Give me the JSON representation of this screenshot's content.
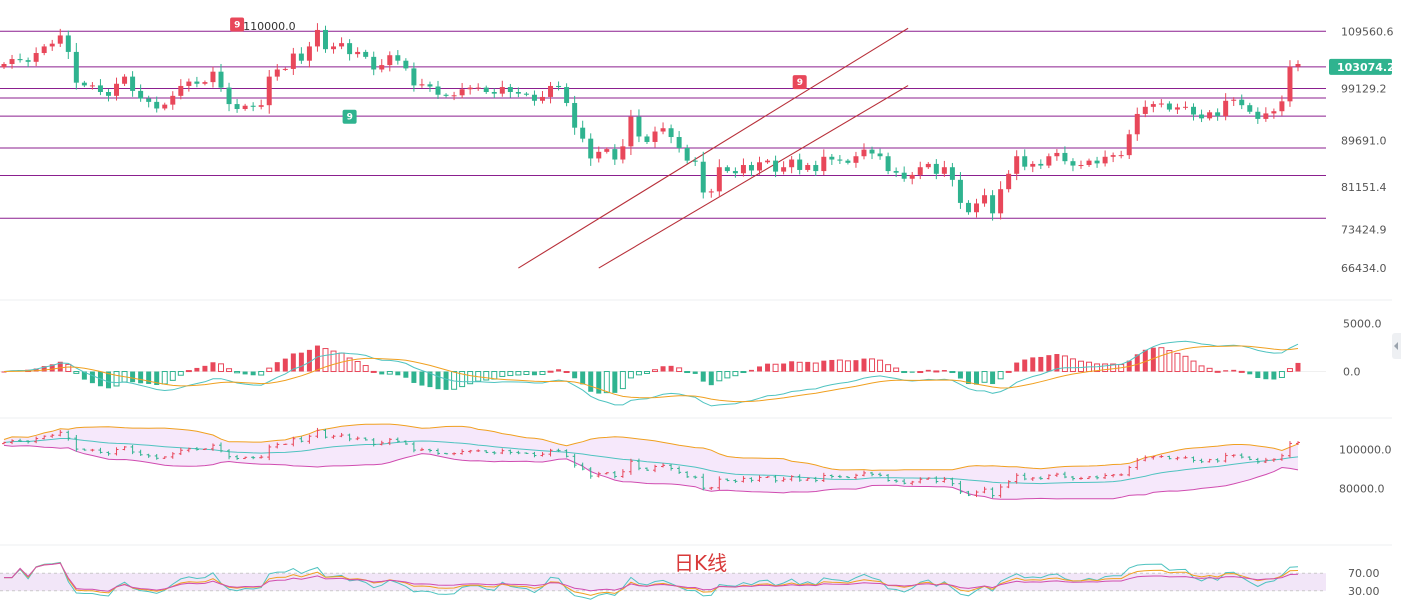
{
  "chart_data": {
    "type": "candlestick",
    "footer_label": "日K线",
    "colors": {
      "up": "#e8475a",
      "down": "#2fb38f",
      "level_line": "#8b1f8f",
      "channel_line": "#b8303a",
      "macd_dif": "#4fc3c0",
      "macd_dea": "#f0a020",
      "boll_upper": "#f0a020",
      "boll_mid": "#4fc3c0",
      "boll_lower": "#d04cb0",
      "boll_fill": "#f4e2fa",
      "rsi_band": "#f2e6f8",
      "price_tag": "#2fb38f",
      "marker_sell": "#e8475a",
      "marker_buy": "#2fb38f"
    },
    "price_panel": {
      "y_ticks": [
        "109560.6",
        "99129.2",
        "89691.0",
        "81151.4",
        "73424.9",
        "66434.0"
      ],
      "y_range": [
        62800,
        113800
      ],
      "current_price": "103074.2",
      "high_annotation": "110000.0",
      "horizontal_levels": [
        109560.6,
        103074.2,
        99129.2,
        97400,
        94100,
        88300,
        83300,
        75500
      ],
      "channel_upper": [
        [
          64,
          66434
        ],
        [
          110,
          109560.6
        ]
      ],
      "channel_lower": [
        [
          74,
          66434
        ],
        [
          110,
          99129.2
        ]
      ],
      "markers": [
        {
          "x": 29,
          "price": 110800,
          "label": "9",
          "kind": "sell"
        },
        {
          "x": 43,
          "price": 94000,
          "label": "9",
          "kind": "buy"
        },
        {
          "x": 99,
          "price": 100300,
          "label": "9",
          "kind": "sell"
        }
      ]
    },
    "macd_panel": {
      "y_ticks": [
        "5000.0",
        "0.0"
      ],
      "y_range": [
        -3800,
        6200
      ]
    },
    "boll_panel": {
      "y_ticks": [
        "100000.0",
        "80000.0"
      ],
      "y_range": [
        68000,
        111000
      ]
    },
    "rsi_panel": {
      "y_ticks": [
        "70.00",
        "30.00"
      ],
      "y_range": [
        0,
        100
      ]
    },
    "closes": [
      103600,
      104500,
      104300,
      104000,
      105600,
      106800,
      107300,
      108800,
      105800,
      100200,
      99700,
      99700,
      98500,
      97800,
      100000,
      101300,
      98700,
      97300,
      96700,
      95500,
      96200,
      97800,
      99600,
      100400,
      100000,
      100300,
      102200,
      99300,
      96300,
      95400,
      96000,
      95800,
      96100,
      101300,
      102600,
      102700,
      105500,
      104200,
      106800,
      109800,
      106300,
      106800,
      107400,
      105400,
      105800,
      104900,
      102600,
      103400,
      105200,
      104200,
      102800,
      99700,
      99900,
      99500,
      98000,
      97800,
      97900,
      99000,
      99300,
      99300,
      98500,
      98200,
      99400,
      98500,
      98200,
      98000,
      96900,
      97600,
      99600,
      99400,
      96500,
      92000,
      90000,
      86400,
      87600,
      88100,
      86200,
      88600,
      94000,
      90400,
      89400,
      91300,
      91900,
      90300,
      88300,
      86000,
      85800,
      80200,
      80400,
      84800,
      84100,
      83700,
      85200,
      84200,
      85700,
      86000,
      84000,
      84800,
      86200,
      84300,
      85200,
      84100,
      86700,
      86200,
      86000,
      85600,
      86800,
      88000,
      87300,
      86800,
      84100,
      83800,
      82700,
      83400,
      84800,
      85400,
      83600,
      84800,
      82500,
      78300,
      76600,
      78200,
      79700,
      76400,
      80800,
      83600,
      86800,
      84900,
      85400,
      85100,
      86800,
      87400,
      85900,
      85100,
      85200,
      86000,
      85500,
      86700,
      87000,
      87000,
      90800,
      94500,
      95800,
      96300,
      96400,
      95300,
      95700,
      95800,
      94400,
      93700,
      94800,
      94100,
      96900,
      97100,
      96100,
      94900,
      93600,
      94600,
      95000,
      96800,
      103100,
      103600
    ]
  }
}
